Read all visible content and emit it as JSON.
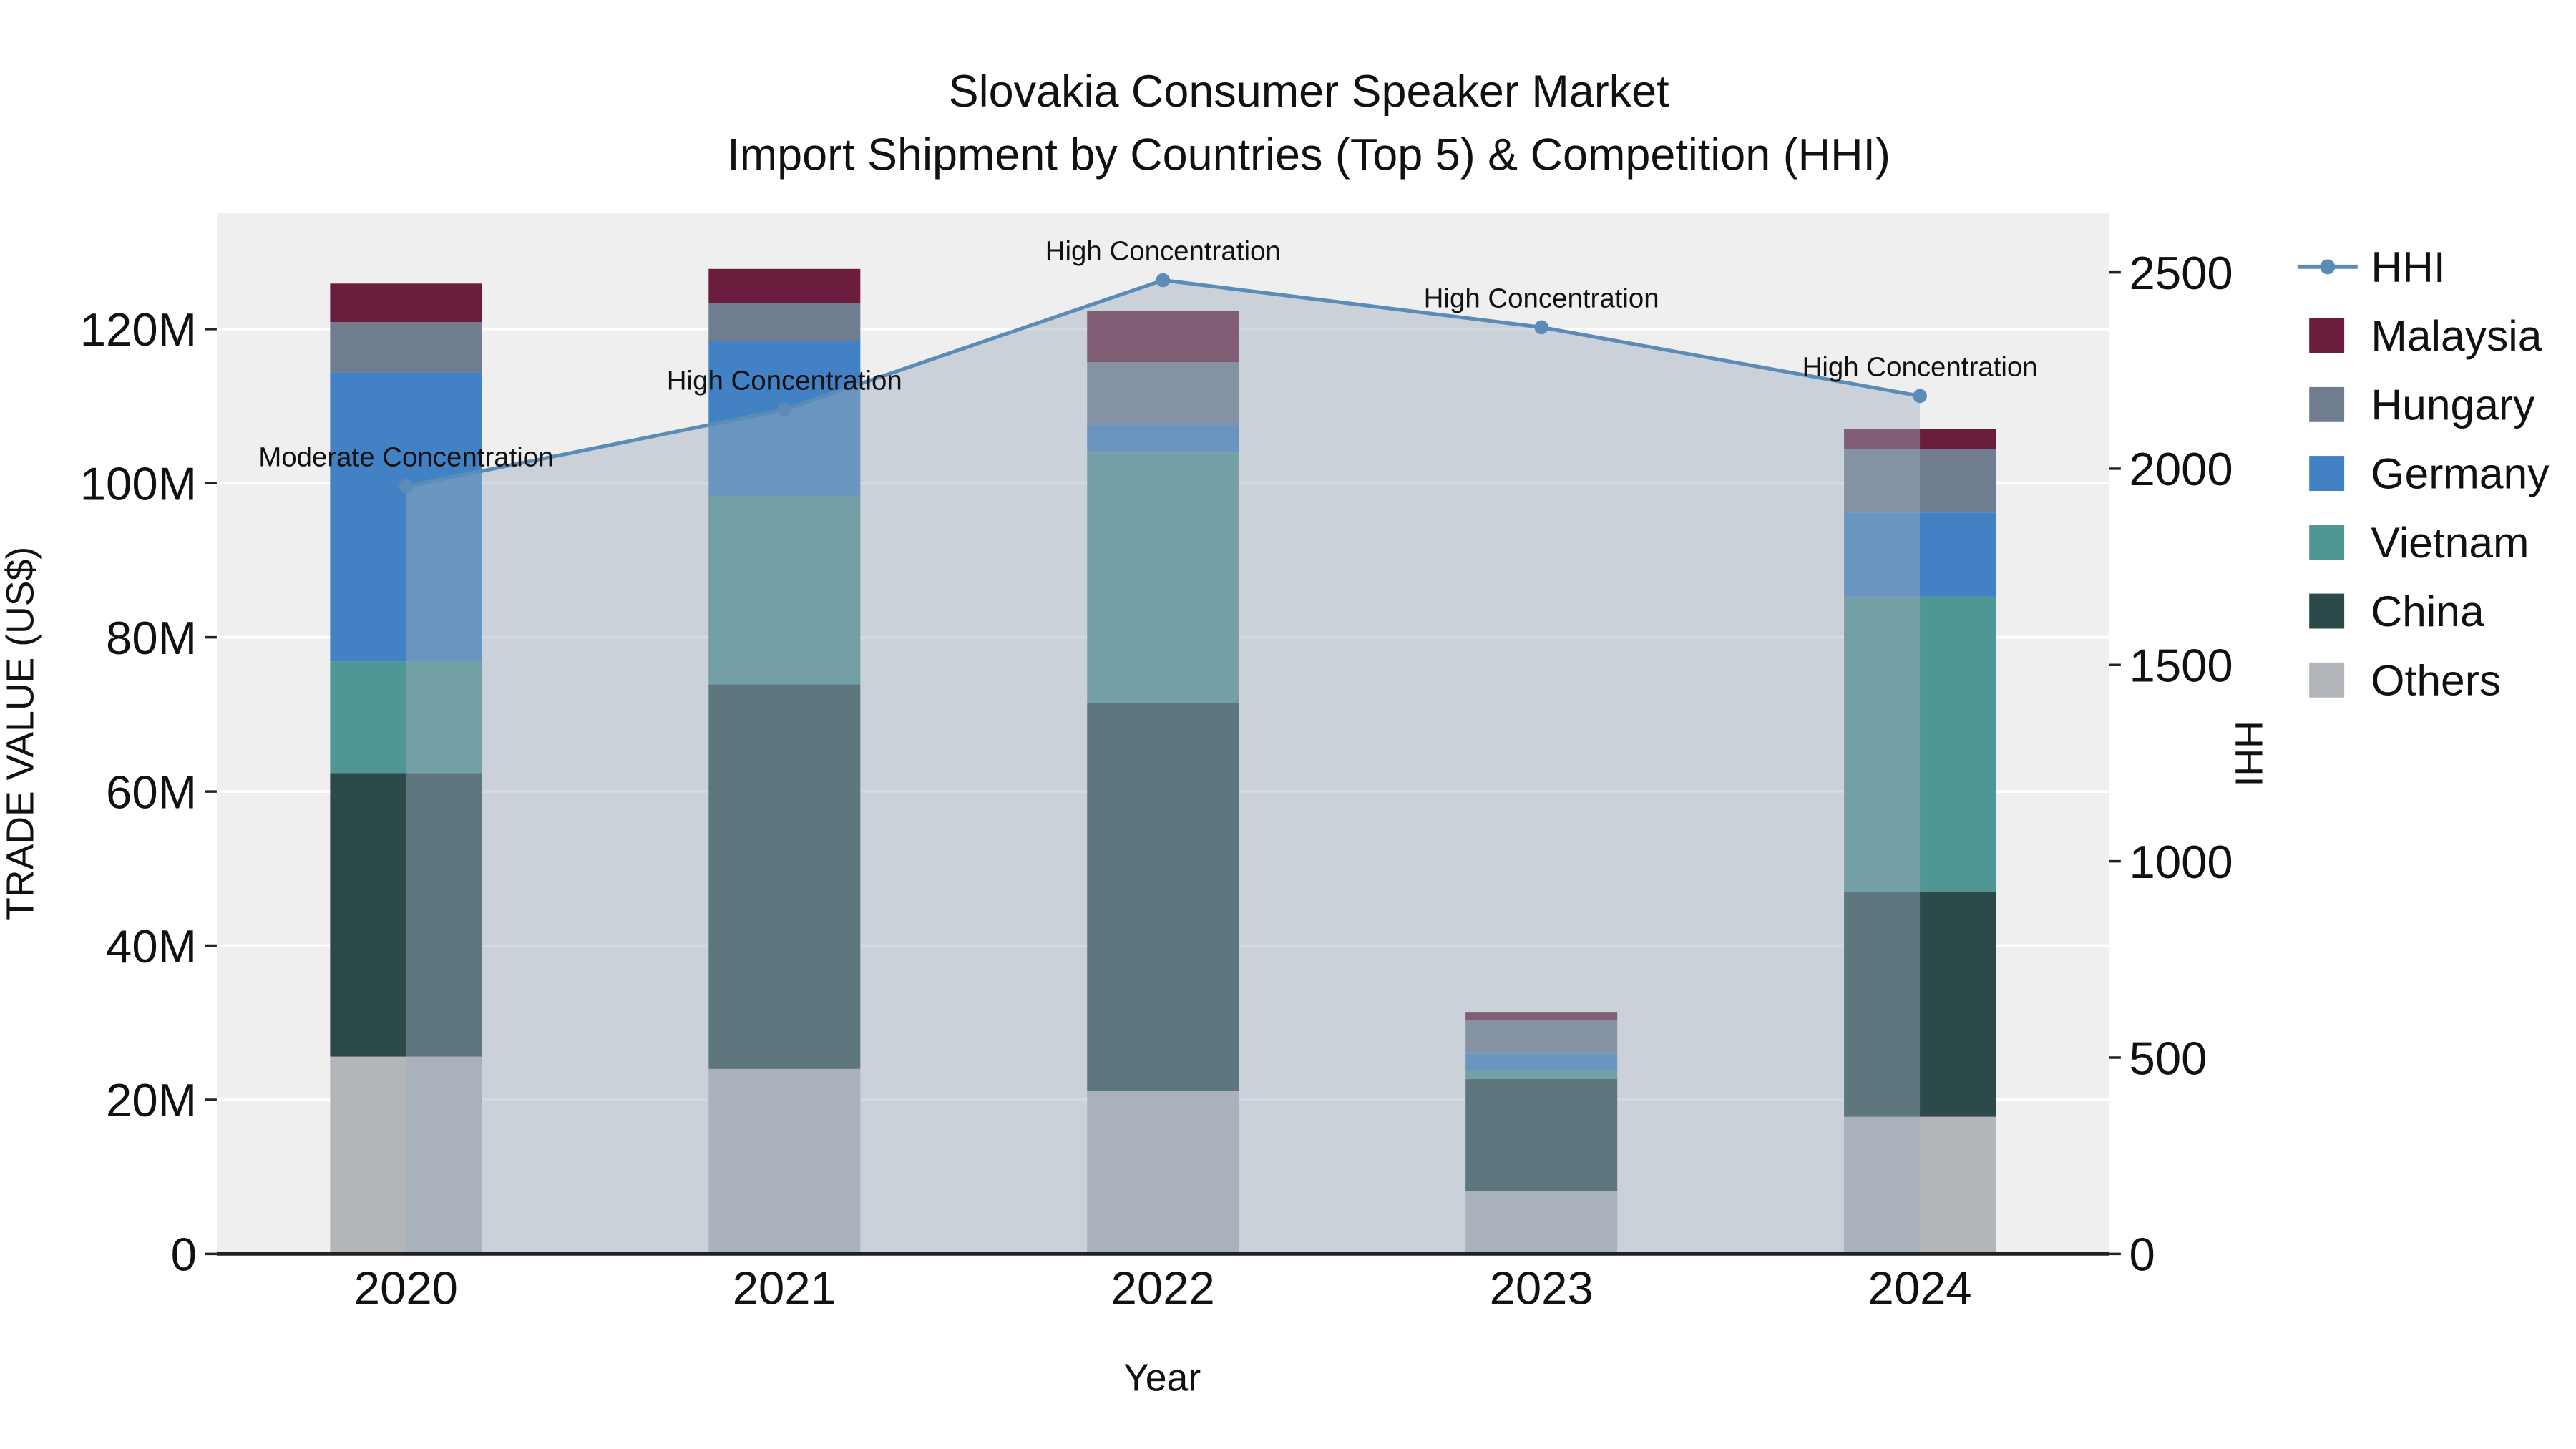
{
  "title": {
    "line1": "Slovakia Consumer Speaker Market",
    "line2": "Import Shipment by Countries (Top 5) & Competition (HHI)"
  },
  "axes": {
    "x_label": "Year",
    "y_left_label": "TRADE VALUE (US$)",
    "y_right_label": "HHI"
  },
  "legend": {
    "items": [
      {
        "label": "HHI",
        "type": "line",
        "color": "#5b8cb8"
      },
      {
        "label": "Malaysia",
        "type": "square",
        "color": "#6c1d3d"
      },
      {
        "label": "Hungary",
        "type": "square",
        "color": "#6f7d8f"
      },
      {
        "label": "Germany",
        "type": "square",
        "color": "#4181c4"
      },
      {
        "label": "Vietnam",
        "type": "square",
        "color": "#4f9694"
      },
      {
        "label": "China",
        "type": "square",
        "color": "#2b4a49"
      },
      {
        "label": "Others",
        "type": "square",
        "color": "#b2b5b9"
      }
    ]
  },
  "chart_data": {
    "type": "bar+line",
    "title": "Slovakia Consumer Speaker Market - Import Shipment by Countries (Top 5) & Competition (HHI)",
    "categories": [
      "2020",
      "2021",
      "2022",
      "2023",
      "2024"
    ],
    "unit": "USD millions",
    "stacked": true,
    "bar_series": [
      {
        "name": "Others",
        "color": "#b2b5b9",
        "values": [
          25.6,
          24.0,
          21.2,
          8.2,
          17.8
        ]
      },
      {
        "name": "China",
        "color": "#2b4a49",
        "values": [
          36.8,
          49.9,
          50.3,
          14.5,
          29.2
        ]
      },
      {
        "name": "Vietnam",
        "color": "#4f9694",
        "values": [
          14.5,
          24.4,
          32.5,
          1.1,
          38.3
        ]
      },
      {
        "name": "Germany",
        "color": "#4181c4",
        "values": [
          37.5,
          20.2,
          3.6,
          2.2,
          10.9
        ]
      },
      {
        "name": "Hungary",
        "color": "#6f7d8f",
        "values": [
          6.5,
          4.9,
          8.1,
          4.3,
          8.2
        ]
      },
      {
        "name": "Malaysia",
        "color": "#6c1d3d",
        "values": [
          5.0,
          4.4,
          6.7,
          1.1,
          2.6
        ]
      }
    ],
    "hhi": {
      "name": "HHI",
      "color": "#5b8cb8",
      "fill_color": "rgba(158,172,188,0.45)",
      "values": [
        1955,
        2150,
        2480,
        2360,
        2185
      ]
    },
    "annotations": [
      "Moderate Concentration",
      "High Concentration",
      "High Concentration",
      "High Concentration",
      "High Concentration"
    ],
    "xlabel": "Year",
    "ylabel": "TRADE VALUE (US$)",
    "y2label": "HHI",
    "y_left_max": 135,
    "y_right_max": 2650,
    "y_left_tick_values": [
      0,
      20,
      40,
      60,
      80,
      100,
      120
    ],
    "y_left_tick_labels": [
      "0",
      "20M",
      "40M",
      "60M",
      "80M",
      "100M",
      "120M"
    ],
    "y_right_tick_values": [
      0,
      500,
      1000,
      1500,
      2000,
      2500
    ],
    "y_right_tick_labels": [
      "0",
      "500",
      "1000",
      "1500",
      "2000",
      "2500"
    ],
    "plot_bg": "#efefef",
    "grid_color": "#ffffff",
    "legend_position": "right"
  }
}
